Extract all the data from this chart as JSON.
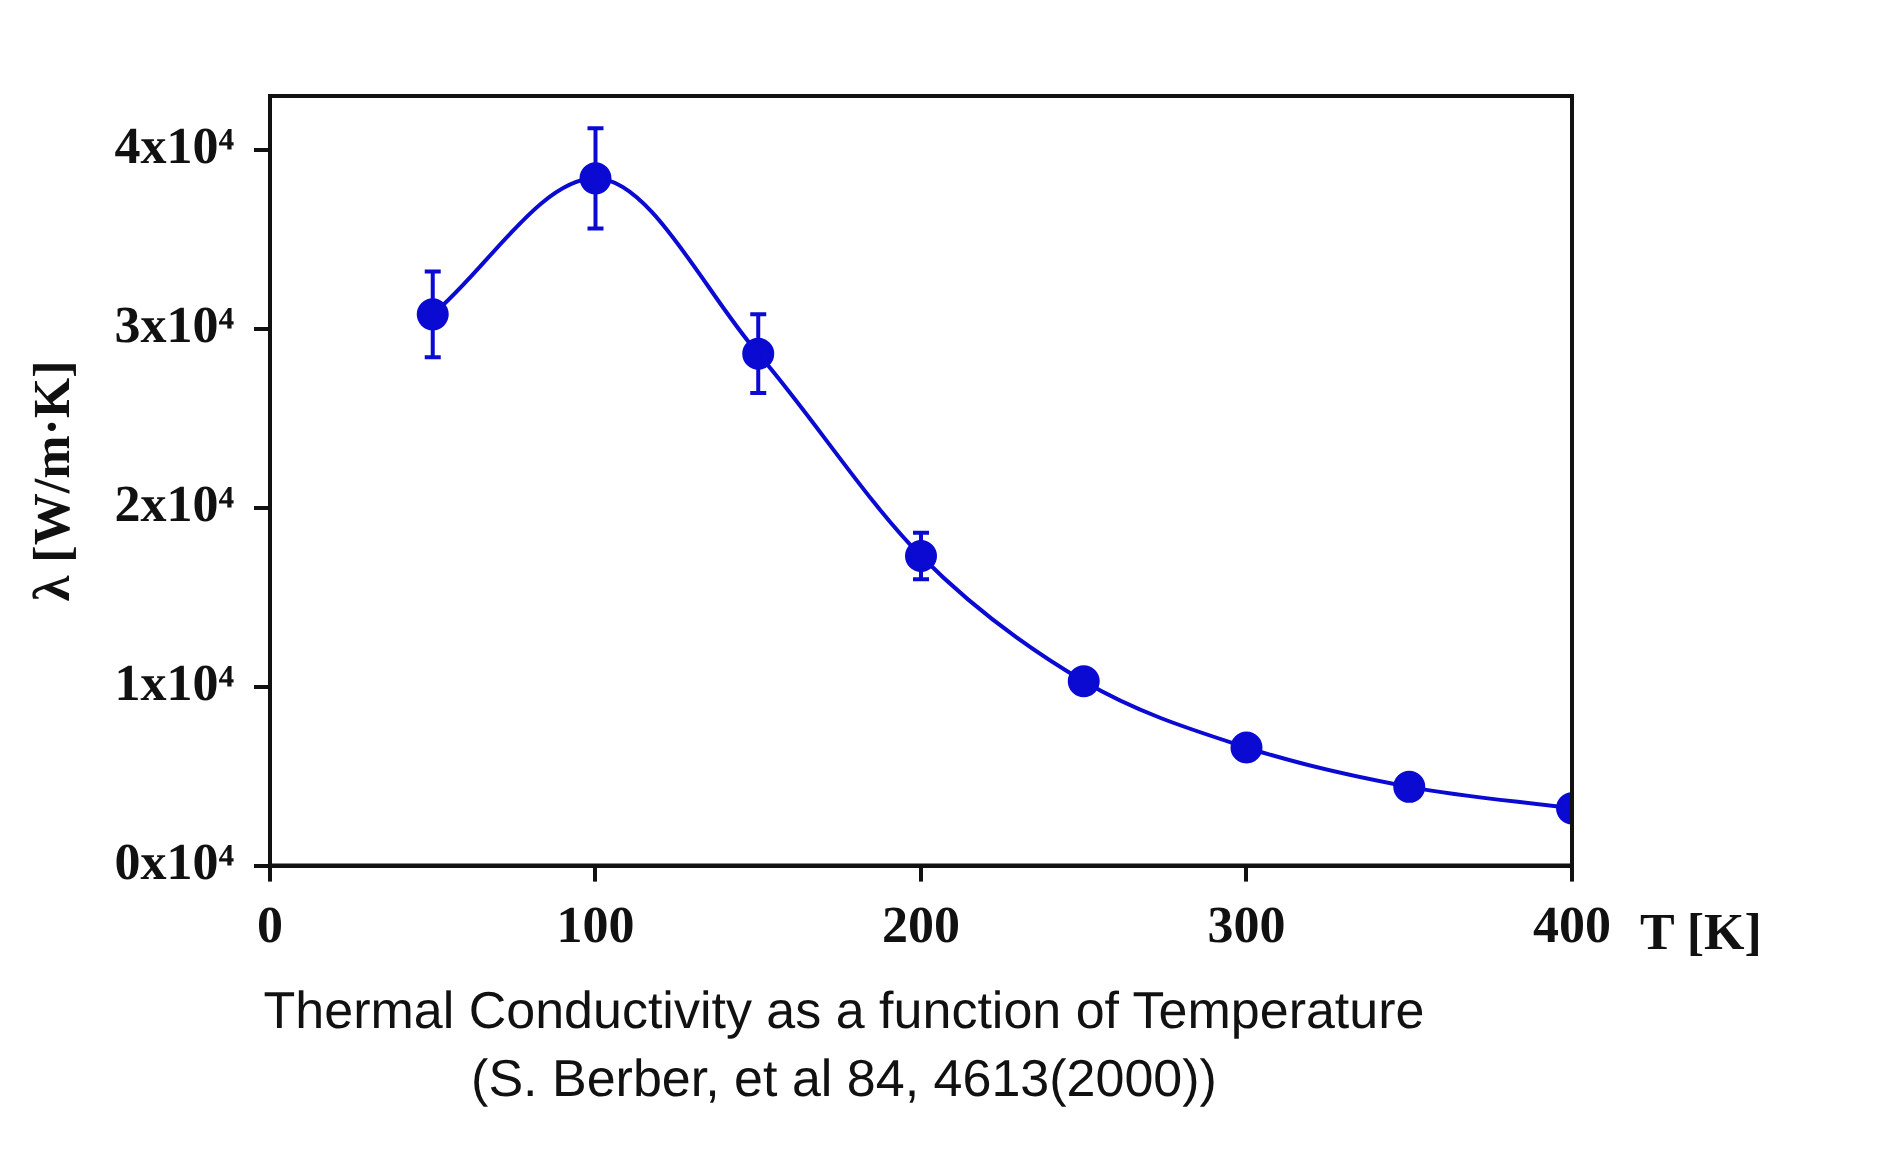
{
  "chart_data": {
    "type": "line",
    "xlabel": "T [K]",
    "ylabel": "λ [W/m·K]",
    "x": [
      50,
      100,
      150,
      200,
      250,
      300,
      350,
      400
    ],
    "series": [
      {
        "color": "#0a0ad2",
        "values": [
          30800,
          38400,
          28600,
          17300,
          10300,
          6600,
          4400,
          3200
        ],
        "errors": [
          2400,
          2800,
          2200,
          1300,
          null,
          null,
          null,
          null
        ]
      }
    ],
    "xlim": [
      0,
      400
    ],
    "xticks": [
      0,
      100,
      200,
      300,
      400
    ],
    "ylim": [
      0,
      43000
    ],
    "yticks": [
      {
        "value": 0,
        "label": "0x10⁴"
      },
      {
        "value": 10000,
        "label": "1x10⁴"
      },
      {
        "value": 20000,
        "label": "2x10⁴"
      },
      {
        "value": 30000,
        "label": "3x10⁴"
      },
      {
        "value": 40000,
        "label": "4x10⁴"
      }
    ],
    "marker": "circle",
    "line_style": "solid",
    "grid": false,
    "legend": false,
    "annotations": [
      "Thermal Conductivity as a function of Temperature",
      "(S. Berber, et al 84, 4613(2000))"
    ]
  }
}
